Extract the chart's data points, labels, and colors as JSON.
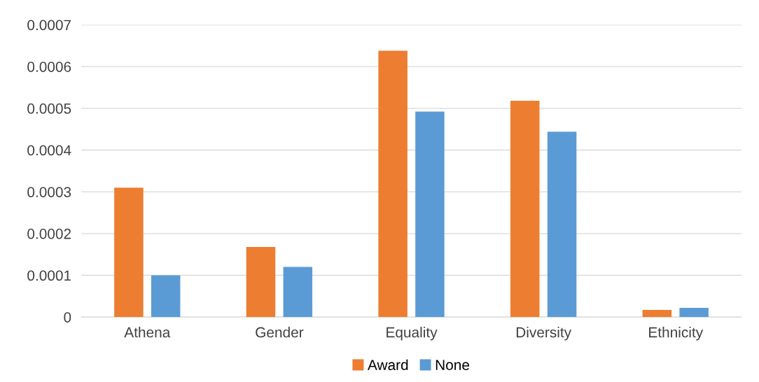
{
  "chart_data": {
    "type": "bar",
    "categories": [
      "Athena",
      "Gender",
      "Equality",
      "Diversity",
      "Ethnicity"
    ],
    "series": [
      {
        "name": "Award",
        "color": "#ed7d31",
        "values": [
          0.00031,
          0.000168,
          0.000638,
          0.000518,
          1.7e-05
        ]
      },
      {
        "name": "None",
        "color": "#5b9bd5",
        "values": [
          0.0001,
          0.00012,
          0.000492,
          0.000444,
          2.2e-05
        ]
      }
    ],
    "ylim": [
      0,
      0.0007
    ],
    "yticks": [
      0,
      0.0001,
      0.0002,
      0.0003,
      0.0004,
      0.0005,
      0.0006,
      0.0007
    ],
    "grid": "y",
    "legend": "bottom"
  }
}
